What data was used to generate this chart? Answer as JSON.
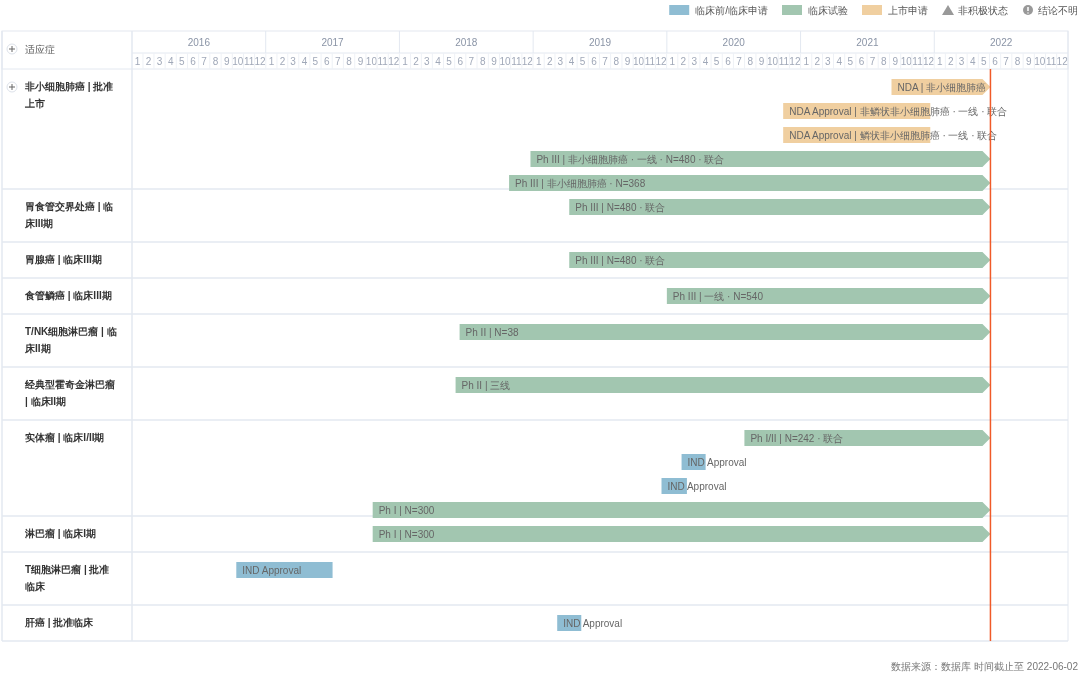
{
  "chart_data": {
    "type": "bar",
    "orientation": "horizontal",
    "ylabel": "适应症",
    "legend": "top right",
    "categories": [
      "非小细胞肺癌 | 批准上市",
      null,
      null,
      null,
      null,
      "胃食管交界处癌 | 临床III期",
      "胃腺癌 | 临床III期",
      "食管鳞癌 | 临床III期",
      "T/NK细胞淋巴瘤 | 临床II期",
      "经典型霍奇金淋巴瘤 | 临床II期",
      "实体瘤 | 临床I/II期",
      null,
      null,
      null,
      "淋巴瘤 | 临床I期",
      "T细胞淋巴瘤 | 批准临床",
      "肝癌 | 批准临床"
    ],
    "xlim": [
      2016,
      2023
    ],
    "xticks": [
      {
        "value": 2016.5,
        "label": "2016"
      },
      {
        "value": 2017.5,
        "label": "2017"
      },
      {
        "value": 2018.5,
        "label": "2018"
      },
      {
        "value": 2019.5,
        "label": "2019"
      },
      {
        "value": 2020.5,
        "label": "2020"
      },
      {
        "value": 2021.5,
        "label": "2021"
      },
      {
        "value": 2022.5,
        "label": "2022"
      }
    ],
    "x2lim": [
      "2016-01-01",
      "2023-01-01"
    ],
    "x2ticks": [
      {
        "value": "2016-01-16",
        "label": "1"
      },
      {
        "value": "2016-02-15",
        "label": "2"
      },
      {
        "value": "2016-03-16",
        "label": "3"
      },
      {
        "value": "2016-04-16",
        "label": "4"
      },
      {
        "value": "2016-05-16",
        "label": "5"
      },
      {
        "value": "2016-06-16",
        "label": "6"
      },
      {
        "value": "2016-07-16",
        "label": "7"
      },
      {
        "value": "2016-08-16",
        "label": "8"
      },
      {
        "value": "2016-09-16",
        "label": "9"
      },
      {
        "value": "2016-10-16",
        "label": "10"
      },
      {
        "value": "2016-11-16",
        "label": "11"
      },
      {
        "value": "2016-12-16",
        "label": "12"
      },
      {
        "value": "2017-01-16",
        "label": "1"
      },
      {
        "value": "2017-02-15",
        "label": "2"
      },
      {
        "value": "2017-03-16",
        "label": "3"
      },
      {
        "value": "2017-04-16",
        "label": "4"
      },
      {
        "value": "2017-05-16",
        "label": "5"
      },
      {
        "value": "2017-06-16",
        "label": "6"
      },
      {
        "value": "2017-07-16",
        "label": "7"
      },
      {
        "value": "2017-08-16",
        "label": "8"
      },
      {
        "value": "2017-09-16",
        "label": "9"
      },
      {
        "value": "2017-10-16",
        "label": "10"
      },
      {
        "value": "2017-11-16",
        "label": "11"
      },
      {
        "value": "2017-12-16",
        "label": "12"
      },
      {
        "value": "2018-01-16",
        "label": "1"
      },
      {
        "value": "2018-02-15",
        "label": "2"
      },
      {
        "value": "2018-03-16",
        "label": "3"
      },
      {
        "value": "2018-04-16",
        "label": "4"
      },
      {
        "value": "2018-05-16",
        "label": "5"
      },
      {
        "value": "2018-06-16",
        "label": "6"
      },
      {
        "value": "2018-07-16",
        "label": "7"
      },
      {
        "value": "2018-08-16",
        "label": "8"
      },
      {
        "value": "2018-09-16",
        "label": "9"
      },
      {
        "value": "2018-10-16",
        "label": "10"
      },
      {
        "value": "2018-11-16",
        "label": "11"
      },
      {
        "value": "2018-12-16",
        "label": "12"
      },
      {
        "value": "2019-01-16",
        "label": "1"
      },
      {
        "value": "2019-02-15",
        "label": "2"
      },
      {
        "value": "2019-03-16",
        "label": "3"
      },
      {
        "value": "2019-04-16",
        "label": "4"
      },
      {
        "value": "2019-05-16",
        "label": "5"
      },
      {
        "value": "2019-06-16",
        "label": "6"
      },
      {
        "value": "2019-07-16",
        "label": "7"
      },
      {
        "value": "2019-08-16",
        "label": "8"
      },
      {
        "value": "2019-09-16",
        "label": "9"
      },
      {
        "value": "2019-10-16",
        "label": "10"
      },
      {
        "value": "2019-11-16",
        "label": "11"
      },
      {
        "value": "2019-12-16",
        "label": "12"
      },
      {
        "value": "2020-01-16",
        "label": "1"
      },
      {
        "value": "2020-02-15",
        "label": "2"
      },
      {
        "value": "2020-03-16",
        "label": "3"
      },
      {
        "value": "2020-04-16",
        "label": "4"
      },
      {
        "value": "2020-05-16",
        "label": "5"
      },
      {
        "value": "2020-06-16",
        "label": "6"
      },
      {
        "value": "2020-07-16",
        "label": "7"
      },
      {
        "value": "2020-08-16",
        "label": "8"
      },
      {
        "value": "2020-09-16",
        "label": "9"
      },
      {
        "value": "2020-10-16",
        "label": "10"
      },
      {
        "value": "2020-11-16",
        "label": "11"
      },
      {
        "value": "2020-12-16",
        "label": "12"
      },
      {
        "value": "2021-01-16",
        "label": "1"
      },
      {
        "value": "2021-02-15",
        "label": "2"
      },
      {
        "value": "2021-03-16",
        "label": "3"
      },
      {
        "value": "2021-04-16",
        "label": "4"
      },
      {
        "value": "2021-05-16",
        "label": "5"
      },
      {
        "value": "2021-06-16",
        "label": "6"
      },
      {
        "value": "2021-07-16",
        "label": "7"
      },
      {
        "value": "2021-08-16",
        "label": "8"
      },
      {
        "value": "2021-09-16",
        "label": "9"
      },
      {
        "value": "2021-10-16",
        "label": "10"
      },
      {
        "value": "2021-11-16",
        "label": "11"
      },
      {
        "value": "2021-12-16",
        "label": "12"
      },
      {
        "value": "2022-01-16",
        "label": "1"
      },
      {
        "value": "2022-02-15",
        "label": "2"
      },
      {
        "value": "2022-03-16",
        "label": "3"
      },
      {
        "value": "2022-04-16",
        "label": "4"
      },
      {
        "value": "2022-05-16",
        "label": "5"
      },
      {
        "value": "2022-06-16",
        "label": "6"
      },
      {
        "value": "2022-07-16",
        "label": "7"
      },
      {
        "value": "2022-08-16",
        "label": "8"
      },
      {
        "value": "2022-09-16",
        "label": "9"
      },
      {
        "value": "2022-10-16",
        "label": "10"
      },
      {
        "value": "2022-11-16",
        "label": "11"
      },
      {
        "value": "2022-12-16",
        "label": "12"
      }
    ],
    "series": [
      {
        "name": "临床前/临床申请",
        "color": "#8fbdd3",
        "values": [
          null,
          null,
          null,
          null,
          null,
          null,
          null,
          null,
          null,
          null,
          null,
          0.18,
          0.19,
          null,
          null,
          0.72,
          0.18
        ],
        "base": [
          null,
          null,
          null,
          null,
          null,
          null,
          null,
          null,
          null,
          null,
          null,
          2020.11,
          2019.96,
          null,
          null,
          2016.78,
          2019.18
        ]
      },
      {
        "name": "临床试验",
        "color": "#a2c6b0",
        "values": [
          null,
          null,
          null,
          3.44,
          3.6,
          3.15,
          3.15,
          2.42,
          3.97,
          4.0,
          1.84,
          null,
          null,
          4.62,
          4.62,
          null,
          null
        ],
        "base": [
          null,
          null,
          null,
          2018.98,
          2018.82,
          2019.27,
          2019.27,
          2020.0,
          2018.45,
          2018.42,
          2020.58,
          null,
          null,
          2017.8,
          2017.8,
          null,
          null
        ]
      },
      {
        "name": "上市申请",
        "color": "#f0cfa0",
        "values": [
          0.74,
          1.1,
          1.1,
          null,
          null,
          null,
          null,
          null,
          null,
          null,
          null,
          null,
          null,
          null,
          null,
          null,
          null
        ],
        "base": [
          2021.68,
          2020.87,
          2020.87,
          null,
          null,
          null,
          null,
          null,
          null,
          null,
          null,
          null,
          null,
          null,
          null,
          null,
          null
        ]
      },
      {
        "name": "非积极状态",
        "color": "#999999",
        "marker": "triangle",
        "values": [
          null,
          null,
          null,
          null,
          null,
          null,
          null,
          null,
          null,
          null,
          null,
          null,
          null,
          null,
          null,
          null,
          null
        ]
      },
      {
        "name": "结论不明",
        "color": "#999999",
        "marker": "circle",
        "values": [
          null,
          null,
          null,
          null,
          null,
          null,
          null,
          null,
          null,
          null,
          null,
          null,
          null,
          null,
          null,
          null,
          null
        ]
      }
    ],
    "ref_lines": [
      {
        "axis": "x",
        "value": 2022.42,
        "color": "#f05a28"
      }
    ],
    "annotations": [
      "NDA | 非小细胞肺癌",
      "NDA Approval | 非鳞状非小细胞肺癌 · 一线 · 联合",
      "NDA Approval | 鳞状非小细胞肺癌 · 一线 · 联合",
      "Ph III | 非小细胞肺癌 · 一线 · N=480 · 联合",
      "Ph III | 非小细胞肺癌 · N=368",
      "Ph III | N=480 · 联合",
      "Ph III | N=480 · 联合",
      "Ph III | 一线 · N=540",
      "Ph II | N=38",
      "Ph II | 三线",
      "Ph I/II | N=242 · 联合",
      "IND Approval",
      "IND Approval",
      "Ph I | N=300",
      "Ph I | N=300",
      "IND Approval",
      "IND Approval",
      "数据来源：数据库 时间截止至 2022-06-02"
    ]
  }
}
